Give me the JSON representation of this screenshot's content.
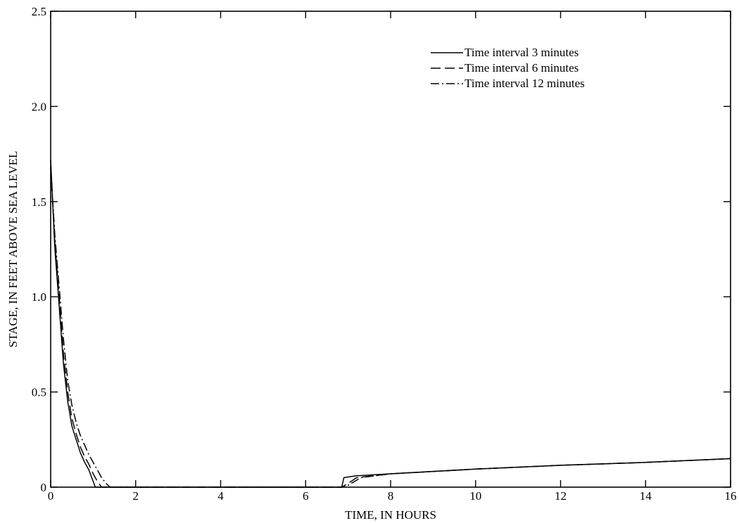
{
  "chart_data": {
    "type": "line",
    "title": "",
    "xlabel": "TIME, IN HOURS",
    "ylabel": "STAGE, IN FEET ABOVE SEA LEVEL",
    "xlim": [
      0,
      16
    ],
    "ylim": [
      0,
      2.5
    ],
    "x_ticks": [
      0,
      2,
      4,
      6,
      8,
      10,
      12,
      14,
      16
    ],
    "x_tick_labels": [
      "0",
      "2",
      "4",
      "6",
      "8",
      "10",
      "12",
      "14",
      "16"
    ],
    "y_ticks": [
      0,
      0.5,
      1.0,
      1.5,
      2.0,
      2.5
    ],
    "y_tick_labels": [
      "0",
      "0.5",
      "1.0",
      "1.5",
      "2.0",
      "2.5"
    ],
    "grid": false,
    "legend_position": "top-right",
    "series": [
      {
        "name": "Time interval 3 minutes",
        "style": "solid",
        "color": "#000000",
        "points": [
          [
            0,
            1.72
          ],
          [
            0.1,
            1.25
          ],
          [
            0.2,
            0.95
          ],
          [
            0.3,
            0.65
          ],
          [
            0.4,
            0.45
          ],
          [
            0.5,
            0.32
          ],
          [
            0.6,
            0.25
          ],
          [
            0.7,
            0.18
          ],
          [
            0.8,
            0.13
          ],
          [
            0.9,
            0.09
          ],
          [
            1.0,
            0.03
          ],
          [
            1.05,
            0.0
          ],
          [
            6.85,
            0.0
          ],
          [
            6.9,
            0.05
          ],
          [
            7.2,
            0.06
          ],
          [
            8.0,
            0.07
          ],
          [
            10.0,
            0.095
          ],
          [
            12.0,
            0.115
          ],
          [
            14.0,
            0.13
          ],
          [
            16.0,
            0.15
          ]
        ]
      },
      {
        "name": "Time interval 6 minutes",
        "style": "dashed",
        "color": "#000000",
        "points": [
          [
            0,
            1.68
          ],
          [
            0.1,
            1.28
          ],
          [
            0.2,
            1.0
          ],
          [
            0.3,
            0.7
          ],
          [
            0.4,
            0.5
          ],
          [
            0.5,
            0.36
          ],
          [
            0.6,
            0.28
          ],
          [
            0.7,
            0.21
          ],
          [
            0.8,
            0.16
          ],
          [
            0.9,
            0.12
          ],
          [
            1.0,
            0.07
          ],
          [
            1.1,
            0.03
          ],
          [
            1.2,
            0.0
          ],
          [
            6.85,
            0.0
          ],
          [
            7.0,
            0.02
          ],
          [
            7.2,
            0.05
          ],
          [
            8.0,
            0.07
          ],
          [
            10.0,
            0.095
          ],
          [
            12.0,
            0.115
          ],
          [
            14.0,
            0.13
          ],
          [
            16.0,
            0.15
          ]
        ]
      },
      {
        "name": "Time interval 12 minutes",
        "style": "dashdot",
        "color": "#000000",
        "points": [
          [
            0,
            1.68
          ],
          [
            0.1,
            1.32
          ],
          [
            0.2,
            1.05
          ],
          [
            0.3,
            0.78
          ],
          [
            0.4,
            0.56
          ],
          [
            0.5,
            0.43
          ],
          [
            0.6,
            0.34
          ],
          [
            0.7,
            0.27
          ],
          [
            0.8,
            0.22
          ],
          [
            0.9,
            0.17
          ],
          [
            1.0,
            0.13
          ],
          [
            1.1,
            0.09
          ],
          [
            1.2,
            0.05
          ],
          [
            1.3,
            0.02
          ],
          [
            1.4,
            0.0
          ],
          [
            6.85,
            0.0
          ],
          [
            7.0,
            0.01
          ],
          [
            7.3,
            0.05
          ],
          [
            8.0,
            0.07
          ],
          [
            10.0,
            0.095
          ],
          [
            12.0,
            0.115
          ],
          [
            14.0,
            0.13
          ],
          [
            16.0,
            0.15
          ]
        ]
      }
    ]
  }
}
